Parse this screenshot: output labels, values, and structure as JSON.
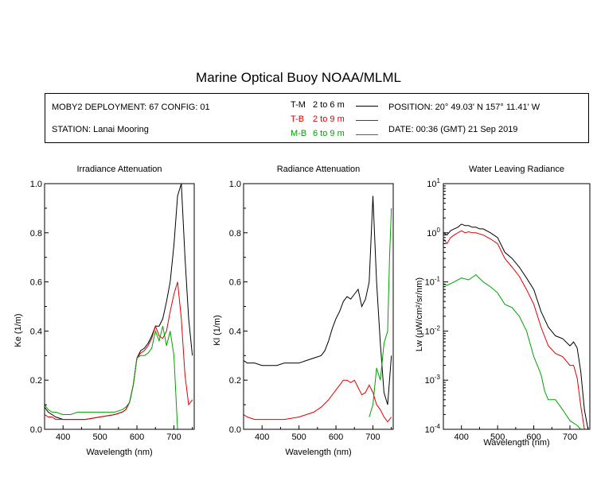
{
  "title": "Marine Optical Buoy NOAA/MLML",
  "info": {
    "deployment": "MOBY2 DEPLOYMENT: 67 CONFIG: 01",
    "station": "STATION: Lanai Mooring",
    "position": "POSITION: 20° 49.03' N   157° 11.41' W",
    "date": "DATE: 00:36 (GMT) 21 Sep 2019"
  },
  "legend": [
    {
      "label": "T-M",
      "range": "2 to 6  m",
      "color": "#000000"
    },
    {
      "label": "T-B",
      "range": "2 to 9  m",
      "color": "#e00000"
    },
    {
      "label": "M-B",
      "range": "6 to 9  m",
      "color": "#00a000"
    }
  ],
  "chart_data": [
    {
      "type": "line",
      "title": "Irradiance Attenuation",
      "xlabel": "Wavelength (nm)",
      "ylabel": "Ke  (1/m)",
      "xlim": [
        350,
        755
      ],
      "ylim": [
        0,
        1
      ],
      "xticks": [
        "400",
        "500",
        "600",
        "700"
      ],
      "yticks": [
        "0.0",
        "0.2",
        "0.4",
        "0.6",
        "0.8",
        "1.0"
      ],
      "series": [
        {
          "name": "T-M",
          "x": [
            350,
            360,
            370,
            380,
            400,
            420,
            440,
            460,
            480,
            500,
            520,
            540,
            560,
            570,
            580,
            590,
            600,
            610,
            620,
            630,
            640,
            650,
            660,
            670,
            680,
            690,
            700,
            710,
            720,
            730,
            740,
            750
          ],
          "y": [
            0.09,
            0.07,
            0.06,
            0.05,
            0.04,
            0.04,
            0.04,
            0.04,
            0.045,
            0.05,
            0.055,
            0.06,
            0.07,
            0.08,
            0.11,
            0.18,
            0.29,
            0.32,
            0.33,
            0.35,
            0.38,
            0.42,
            0.42,
            0.45,
            0.52,
            0.6,
            0.75,
            0.95,
            1.0,
            0.7,
            0.45,
            0.3
          ]
        },
        {
          "name": "T-B",
          "x": [
            350,
            360,
            370,
            380,
            400,
            420,
            440,
            460,
            480,
            500,
            520,
            540,
            560,
            570,
            580,
            590,
            600,
            610,
            620,
            630,
            640,
            650,
            660,
            670,
            680,
            690,
            700,
            710,
            720,
            730,
            740,
            750
          ],
          "y": [
            0.06,
            0.05,
            0.05,
            0.04,
            0.04,
            0.04,
            0.04,
            0.04,
            0.045,
            0.05,
            0.055,
            0.06,
            0.07,
            0.08,
            0.11,
            0.18,
            0.29,
            0.31,
            0.32,
            0.34,
            0.37,
            0.42,
            0.38,
            0.37,
            0.4,
            0.48,
            0.55,
            0.6,
            0.45,
            0.22,
            0.1,
            0.12
          ]
        },
        {
          "name": "M-B",
          "x": [
            350,
            360,
            370,
            380,
            400,
            420,
            440,
            460,
            480,
            500,
            520,
            540,
            560,
            570,
            580,
            590,
            600,
            610,
            620,
            630,
            640,
            650,
            660,
            670,
            680,
            690,
            700,
            705,
            710
          ],
          "y": [
            0.1,
            0.08,
            0.07,
            0.07,
            0.06,
            0.06,
            0.07,
            0.07,
            0.07,
            0.07,
            0.07,
            0.07,
            0.08,
            0.09,
            0.11,
            0.18,
            0.29,
            0.3,
            0.3,
            0.31,
            0.33,
            0.4,
            0.36,
            0.42,
            0.34,
            0.4,
            0.3,
            0.15,
            0.0
          ]
        }
      ]
    },
    {
      "type": "line",
      "title": "Radiance Attenuation",
      "xlabel": "Wavelength (nm)",
      "ylabel": "Kl  (1/m)",
      "xlim": [
        350,
        755
      ],
      "ylim": [
        0,
        1
      ],
      "xticks": [
        "400",
        "500",
        "600",
        "700"
      ],
      "yticks": [
        "0.0",
        "0.2",
        "0.4",
        "0.6",
        "0.8",
        "1.0"
      ],
      "series": [
        {
          "name": "T-M",
          "x": [
            350,
            360,
            380,
            400,
            420,
            440,
            460,
            480,
            500,
            520,
            540,
            560,
            570,
            580,
            590,
            600,
            610,
            620,
            630,
            640,
            650,
            660,
            670,
            680,
            690,
            700,
            710,
            720,
            730,
            740,
            750
          ],
          "y": [
            0.28,
            0.27,
            0.27,
            0.26,
            0.26,
            0.26,
            0.27,
            0.27,
            0.27,
            0.28,
            0.29,
            0.3,
            0.32,
            0.36,
            0.41,
            0.45,
            0.48,
            0.52,
            0.54,
            0.53,
            0.55,
            0.57,
            0.5,
            0.53,
            0.6,
            0.95,
            0.6,
            0.35,
            0.15,
            0.1,
            0.3
          ]
        },
        {
          "name": "T-B",
          "x": [
            350,
            360,
            380,
            400,
            420,
            440,
            460,
            480,
            500,
            520,
            540,
            560,
            580,
            600,
            610,
            620,
            630,
            640,
            650,
            660,
            670,
            680,
            690,
            700,
            710,
            720,
            730,
            740,
            750
          ],
          "y": [
            0.06,
            0.05,
            0.04,
            0.04,
            0.04,
            0.04,
            0.04,
            0.045,
            0.05,
            0.06,
            0.07,
            0.09,
            0.12,
            0.16,
            0.18,
            0.2,
            0.2,
            0.19,
            0.2,
            0.17,
            0.14,
            0.15,
            0.18,
            0.15,
            0.1,
            0.08,
            0.05,
            0.03,
            0.05
          ]
        },
        {
          "name": "M-B",
          "x": [
            690,
            700,
            710,
            720,
            730,
            740,
            745,
            750
          ],
          "y": [
            0.05,
            0.1,
            0.25,
            0.2,
            0.35,
            0.4,
            0.7,
            0.9
          ]
        }
      ]
    },
    {
      "type": "line",
      "title": "Water Leaving Radiance",
      "xlabel": "Wavelength (nm)",
      "ylabel": "Lw  (μW/cm²/sr/nm)",
      "yscale": "log",
      "xlim": [
        350,
        755
      ],
      "ylim": [
        0.0001,
        10
      ],
      "xticks": [
        "400",
        "500",
        "600",
        "700"
      ],
      "yticks_log": [
        {
          "value": 10,
          "base": "10",
          "exp": "1"
        },
        {
          "value": 1,
          "base": "10",
          "exp": "0"
        },
        {
          "value": 0.1,
          "base": "10",
          "exp": "-1"
        },
        {
          "value": 0.01,
          "base": "10",
          "exp": "-2"
        },
        {
          "value": 0.001,
          "base": "10",
          "exp": "-3"
        },
        {
          "value": 0.0001,
          "base": "10",
          "exp": "-4"
        }
      ],
      "series": [
        {
          "name": "T-M",
          "x": [
            350,
            360,
            370,
            380,
            390,
            400,
            410,
            420,
            430,
            440,
            450,
            460,
            480,
            500,
            520,
            540,
            560,
            580,
            600,
            620,
            640,
            660,
            680,
            700,
            710,
            720,
            730,
            740,
            750
          ],
          "y": [
            1.0,
            0.9,
            1.1,
            1.2,
            1.3,
            1.5,
            1.4,
            1.4,
            1.3,
            1.3,
            1.2,
            1.2,
            1.0,
            0.8,
            0.4,
            0.3,
            0.2,
            0.12,
            0.07,
            0.025,
            0.012,
            0.008,
            0.007,
            0.005,
            0.006,
            0.0045,
            0.0015,
            0.00025,
            0.0001
          ]
        },
        {
          "name": "T-B",
          "x": [
            350,
            360,
            370,
            380,
            390,
            400,
            410,
            420,
            430,
            440,
            450,
            460,
            480,
            500,
            520,
            540,
            560,
            580,
            600,
            620,
            640,
            660,
            680,
            700,
            710,
            720,
            730,
            740
          ],
          "y": [
            0.75,
            0.6,
            0.8,
            0.9,
            1.0,
            1.1,
            1.0,
            1.05,
            1.0,
            1.0,
            0.95,
            0.9,
            0.75,
            0.6,
            0.3,
            0.2,
            0.13,
            0.07,
            0.035,
            0.012,
            0.005,
            0.0035,
            0.003,
            0.002,
            0.002,
            0.0011,
            0.0003,
            0.0001
          ]
        },
        {
          "name": "M-B",
          "x": [
            350,
            360,
            380,
            400,
            420,
            440,
            460,
            480,
            500,
            520,
            540,
            560,
            580,
            600,
            610,
            620,
            630,
            640,
            660,
            680,
            700,
            720,
            730,
            740
          ],
          "y": [
            0.09,
            0.085,
            0.1,
            0.12,
            0.11,
            0.14,
            0.1,
            0.08,
            0.06,
            0.035,
            0.03,
            0.02,
            0.01,
            0.003,
            0.002,
            0.0013,
            0.0006,
            0.0004,
            0.0004,
            0.00025,
            0.00015,
            0.00012,
            0.0001,
            0.0001
          ]
        }
      ]
    }
  ]
}
